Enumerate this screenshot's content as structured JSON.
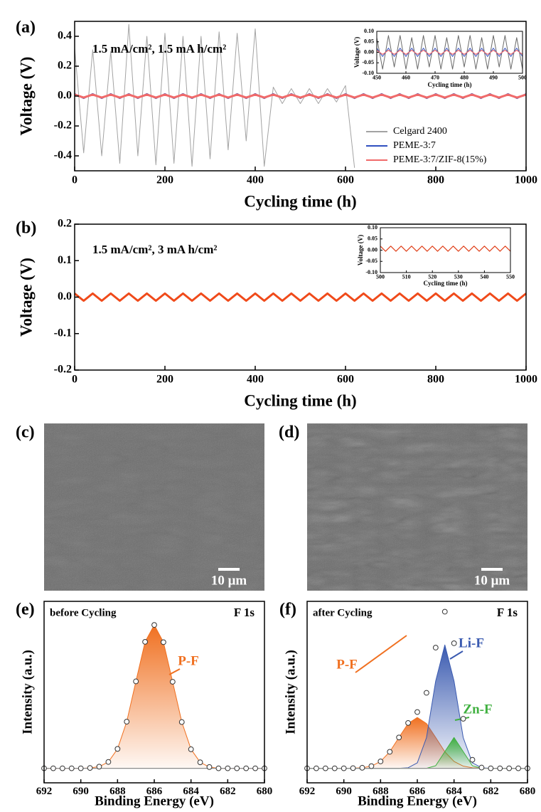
{
  "chart_data": [
    {
      "type": "line",
      "panel_label": "(a)",
      "annotations": [
        "1.5 mA/cm², 1.5 mA h/cm²"
      ],
      "xlabel": "Cycling time (h)",
      "ylabel": "Voltage (V)",
      "x": [
        0,
        20,
        40,
        60,
        80,
        100,
        120,
        140,
        160,
        180,
        200,
        220,
        240,
        260,
        280,
        300,
        320,
        340,
        360,
        380,
        400,
        420,
        440,
        460,
        480,
        500,
        520,
        540,
        560,
        580,
        600,
        620,
        640,
        660,
        680,
        700,
        720,
        740,
        760,
        780,
        800,
        820,
        840,
        860,
        880,
        900,
        920,
        940,
        960,
        980,
        1000
      ],
      "xlim": [
        0,
        1000
      ],
      "xticks": [
        0,
        200,
        400,
        600,
        800,
        1000
      ],
      "ylim": [
        -0.5,
        0.5
      ],
      "yticks": [
        -0.4,
        -0.2,
        {
          "value": 0,
          "label": "0.0"
        },
        0.2,
        0.4
      ],
      "legend": "lower right",
      "series": [
        {
          "name": "Celgard 2400",
          "color": "#a3a3a3",
          "values": [
            0.32,
            -0.38,
            0.31,
            -0.4,
            0.3,
            -0.45,
            0.48,
            -0.4,
            0.4,
            -0.46,
            0.42,
            -0.45,
            0.4,
            -0.47,
            0.4,
            -0.42,
            0.43,
            -0.36,
            0.42,
            -0.3,
            0.45,
            -0.47,
            0.06,
            -0.05,
            0.05,
            -0.05,
            0.05,
            -0.05,
            0.05,
            -0.04,
            0.07,
            -0.48,
            null,
            null,
            null,
            null,
            null,
            null,
            null,
            null,
            null,
            null,
            null,
            null,
            null,
            null,
            null,
            null,
            null,
            null,
            null
          ]
        },
        {
          "name": "PEME-3:7",
          "color": "#3050c0",
          "values": [
            0.015,
            -0.015,
            0.015,
            -0.015,
            0.015,
            -0.015,
            0.015,
            -0.015,
            0.015,
            -0.015,
            0.015,
            -0.015,
            0.015,
            -0.015,
            0.015,
            -0.015,
            0.015,
            -0.015,
            0.015,
            -0.015,
            0.015,
            -0.015,
            0.015,
            -0.015,
            0.015,
            -0.015,
            0.015,
            -0.015,
            0.015,
            -0.015,
            0.015,
            -0.015,
            0.015,
            -0.015,
            0.015,
            -0.015,
            0.015,
            -0.015,
            0.015,
            -0.015,
            0.015,
            -0.015,
            0.015,
            -0.015,
            0.015,
            -0.015,
            0.015,
            -0.015,
            0.015,
            -0.015,
            0.015
          ]
        },
        {
          "name": "PEME-3:7/ZIF-8(15%)",
          "color": "#f06a6a",
          "values": [
            0.01,
            -0.01,
            0.01,
            -0.01,
            0.01,
            -0.01,
            0.01,
            -0.01,
            0.01,
            -0.01,
            0.01,
            -0.01,
            0.01,
            -0.01,
            0.01,
            -0.01,
            0.01,
            -0.01,
            0.01,
            -0.01,
            0.01,
            -0.01,
            0.01,
            -0.01,
            0.01,
            -0.01,
            0.01,
            -0.01,
            0.01,
            -0.01,
            0.01,
            -0.01,
            0.01,
            -0.01,
            0.01,
            -0.01,
            0.01,
            -0.01,
            0.01,
            -0.01,
            0.01,
            -0.01,
            0.01,
            -0.01,
            0.01,
            -0.01,
            0.01,
            -0.01,
            0.01,
            -0.01,
            0.01
          ]
        }
      ]
    },
    {
      "type": "line",
      "xlabel": "Cycling time (h)",
      "ylabel": "Voltage (V)",
      "x": [
        450,
        452,
        454,
        456,
        458,
        460,
        462,
        464,
        466,
        468,
        470,
        472,
        474,
        476,
        478,
        480,
        482,
        484,
        486,
        488,
        490,
        492,
        494,
        496,
        498,
        500
      ],
      "xlim": [
        450,
        500
      ],
      "xticks": [
        450,
        460,
        470,
        480,
        490,
        500
      ],
      "ylim": [
        -0.1,
        0.1
      ],
      "yticks": [
        {
          "value": -0.1,
          "label": "-0.10"
        },
        -0.05,
        {
          "value": 0,
          "label": "0.00"
        },
        0.05,
        {
          "value": 0.1,
          "label": "0.10"
        }
      ],
      "series": [
        {
          "color": "#6a6a6a",
          "values": [
            0.07,
            -0.08,
            0.08,
            -0.07,
            0.08,
            -0.08,
            0.07,
            -0.08,
            0.08,
            -0.07,
            0.08,
            -0.08,
            0.07,
            -0.08,
            0.08,
            -0.07,
            0.08,
            -0.08,
            0.07,
            -0.08,
            0.08,
            -0.07,
            0.08,
            -0.08,
            0.07,
            -0.08
          ]
        },
        {
          "color": "#3050c0",
          "values": [
            0.02,
            -0.02,
            0.02,
            -0.02,
            0.02,
            -0.02,
            0.02,
            -0.02,
            0.02,
            -0.02,
            0.02,
            -0.02,
            0.02,
            -0.02,
            0.02,
            -0.02,
            0.02,
            -0.02,
            0.02,
            -0.02,
            0.02,
            -0.02,
            0.02,
            -0.02,
            0.02,
            -0.02
          ]
        },
        {
          "color": "#f06a6a",
          "values": [
            0.01,
            -0.01,
            0.01,
            -0.01,
            0.01,
            -0.01,
            0.01,
            -0.01,
            0.01,
            -0.01,
            0.01,
            -0.01,
            0.01,
            -0.01,
            0.01,
            -0.01,
            0.01,
            -0.01,
            0.01,
            -0.01,
            0.01,
            -0.01,
            0.01,
            -0.01,
            0.01,
            -0.01
          ]
        }
      ]
    },
    {
      "type": "line",
      "panel_label": "(b)",
      "annotations": [
        "1.5 mA/cm², 3 mA h/cm²"
      ],
      "xlabel": "Cycling time (h)",
      "ylabel": "Voltage (V)",
      "x": [
        0,
        20,
        40,
        60,
        80,
        100,
        120,
        140,
        160,
        180,
        200,
        220,
        240,
        260,
        280,
        300,
        320,
        340,
        360,
        380,
        400,
        420,
        440,
        460,
        480,
        500,
        520,
        540,
        560,
        580,
        600,
        620,
        640,
        660,
        680,
        700,
        720,
        740,
        760,
        780,
        800,
        820,
        840,
        860,
        880,
        900,
        920,
        940,
        960,
        980,
        1000
      ],
      "xlim": [
        0,
        1000
      ],
      "xticks": [
        0,
        200,
        400,
        600,
        800,
        1000
      ],
      "ylim": [
        -0.2,
        0.2
      ],
      "yticks": [
        -0.2,
        -0.1,
        {
          "value": 0,
          "label": "0.0"
        },
        0.1,
        0.2
      ],
      "series": [
        {
          "color": "#f04a1a",
          "values": [
            0.01,
            -0.01,
            0.01,
            -0.01,
            0.01,
            -0.01,
            0.01,
            -0.01,
            0.01,
            -0.01,
            0.01,
            -0.01,
            0.01,
            -0.01,
            0.01,
            -0.01,
            0.01,
            -0.01,
            0.01,
            -0.01,
            0.01,
            -0.01,
            0.01,
            -0.01,
            0.01,
            -0.01,
            0.01,
            -0.01,
            0.01,
            -0.01,
            0.01,
            -0.01,
            0.01,
            -0.01,
            0.01,
            -0.01,
            0.01,
            -0.01,
            0.01,
            -0.01,
            0.01,
            -0.01,
            0.01,
            -0.01,
            0.01,
            -0.01,
            0.01,
            -0.01,
            0.01,
            -0.01,
            0.01
          ]
        }
      ]
    },
    {
      "type": "line",
      "xlabel": "Cycling time (h)",
      "ylabel": "Voltage (V)",
      "x": [
        500,
        502,
        504,
        506,
        508,
        510,
        512,
        514,
        516,
        518,
        520,
        522,
        524,
        526,
        528,
        530,
        532,
        534,
        536,
        538,
        540,
        542,
        544,
        546,
        548,
        550
      ],
      "xlim": [
        500,
        550
      ],
      "xticks": [
        500,
        510,
        520,
        530,
        540,
        550
      ],
      "ylim": [
        -0.1,
        0.1
      ],
      "yticks": [
        {
          "value": -0.1,
          "label": "-0.10"
        },
        -0.05,
        {
          "value": 0,
          "label": "0.00"
        },
        0.05,
        {
          "value": 0.1,
          "label": "0.10"
        }
      ],
      "series": [
        {
          "color": "#e0401a",
          "values": [
            0.018,
            -0.005,
            0.018,
            -0.005,
            0.018,
            -0.005,
            0.018,
            -0.005,
            0.018,
            -0.005,
            0.018,
            -0.005,
            0.018,
            -0.005,
            0.018,
            -0.005,
            0.018,
            -0.005,
            0.018,
            -0.005,
            0.018,
            -0.005,
            0.018,
            -0.005,
            0.018,
            -0.005
          ]
        }
      ]
    },
    {
      "type": "line",
      "panel_label": "(e)",
      "annotations": [
        "before Cycling",
        "F 1s"
      ],
      "xlabel": "Binding Energy (eV)",
      "ylabel": "Intensity (a.u.)",
      "x": [
        692,
        691.5,
        691,
        690.5,
        690,
        689.5,
        689,
        688.5,
        688,
        687.5,
        687,
        686.5,
        686,
        685.5,
        685,
        684.5,
        684,
        683.5,
        683,
        682.5,
        682,
        681.5,
        681,
        680.5,
        680
      ],
      "xlim": [
        692,
        680
      ],
      "xticks": [
        692,
        690,
        688,
        686,
        684,
        682,
        680
      ],
      "ylim": [
        0,
        100
      ],
      "series": [
        {
          "name": "P-F",
          "color": "#f07020",
          "fill": true,
          "values": [
            8,
            8,
            8,
            8,
            8,
            8.2,
            8.9,
            11.5,
            18.7,
            33.7,
            55.9,
            77.7,
            87,
            77.5,
            55.7,
            33.5,
            18.5,
            11.3,
            8.7,
            8,
            8,
            8,
            8,
            8,
            8
          ]
        },
        {
          "color": "#8a8a8a",
          "values": [
            8,
            8,
            8,
            8,
            8,
            8,
            8,
            8,
            8,
            8,
            8,
            8,
            8,
            8,
            8,
            8,
            8,
            8,
            8,
            8,
            8,
            8,
            8,
            8,
            8
          ]
        },
        {
          "color": "#333333",
          "marker": "circle",
          "values": [
            8,
            8,
            8,
            8,
            8,
            8.2,
            8.9,
            11.5,
            18.7,
            33.7,
            55.9,
            77.7,
            87,
            77.5,
            55.7,
            33.5,
            18.5,
            11.3,
            8.7,
            8,
            8,
            8,
            8,
            8,
            8
          ]
        }
      ]
    },
    {
      "type": "line",
      "panel_label": "(f)",
      "annotations": [
        "after Cycling",
        "F 1s"
      ],
      "xlabel": "Binding Energy (eV)",
      "ylabel": "Intensity (a.u.)",
      "x": [
        692,
        691.5,
        691,
        690.5,
        690,
        689.5,
        689,
        688.5,
        688,
        687.5,
        687,
        686.5,
        686,
        685.5,
        685,
        684.5,
        684,
        683.5,
        683,
        682.5,
        682,
        681.5,
        681,
        680.5,
        680
      ],
      "xlim": [
        692,
        680
      ],
      "xticks": [
        692,
        690,
        688,
        686,
        684,
        682,
        680
      ],
      "ylim": [
        0,
        100
      ],
      "series": [
        {
          "name": "P-F",
          "color": "#f07020",
          "fill": true,
          "values": [
            8,
            8,
            8,
            8,
            8,
            8.1,
            8.3,
            9.2,
            11.8,
            17.1,
            25,
            32.7,
            36,
            32.7,
            25,
            17.1,
            11.8,
            9.2,
            8.3,
            8.1,
            8,
            8,
            8,
            8,
            8
          ]
        },
        {
          "name": "Li-F",
          "color": "#3a5ab0",
          "fill": true,
          "values": [
            8,
            8,
            8,
            8,
            8,
            8,
            8,
            8,
            8,
            8,
            8,
            8.3,
            11,
            24.9,
            56.1,
            76,
            56.1,
            24.9,
            11,
            8.3,
            8,
            8,
            8,
            8,
            8
          ]
        },
        {
          "name": "Zn-F",
          "color": "#40b040",
          "fill": true,
          "values": [
            8,
            8,
            8,
            8,
            8,
            8,
            8,
            8,
            8,
            8,
            8,
            8,
            8,
            8,
            9.4,
            17.2,
            25,
            17.2,
            9.4,
            8,
            8,
            8,
            8,
            8,
            8
          ]
        },
        {
          "color": "#8a8a8a",
          "values": [
            8,
            8,
            8,
            8,
            8,
            8,
            8,
            8,
            8,
            8,
            8,
            8,
            8,
            8,
            8,
            8,
            8,
            8,
            8,
            8,
            8,
            8,
            8,
            8,
            8
          ]
        },
        {
          "color": "#333333",
          "marker": "circle",
          "values": [
            8,
            8,
            8,
            8,
            8,
            8.1,
            8.3,
            9.2,
            11.8,
            17.1,
            25,
            33,
            39,
            49.6,
            74.5,
            94.3,
            76.9,
            35.3,
            12.7,
            8.4,
            8,
            8,
            8,
            8,
            8
          ]
        }
      ]
    }
  ],
  "images": [
    {
      "label": "(c)",
      "scale": "10 μm"
    },
    {
      "label": "(d)",
      "scale": "10 μm"
    }
  ]
}
